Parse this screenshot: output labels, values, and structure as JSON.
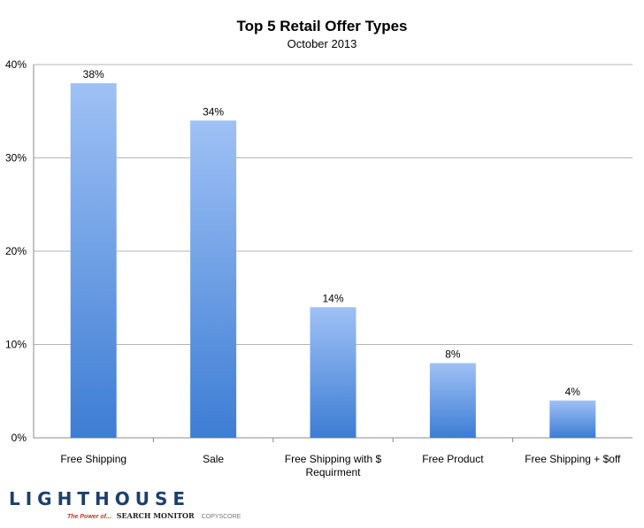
{
  "chart_data": {
    "type": "bar",
    "title": "Top 5 Retail Offer Types",
    "subtitle": "October 2013",
    "categories": [
      "Free Shipping",
      "Sale",
      "Free Shipping with $ Requirment",
      "Free Product",
      "Free Shipping + $off"
    ],
    "category_lines": [
      [
        "Free Shipping"
      ],
      [
        "Sale"
      ],
      [
        "Free Shipping with $",
        "Requirment"
      ],
      [
        "Free Product"
      ],
      [
        "Free Shipping + $off"
      ]
    ],
    "values": [
      38,
      34,
      14,
      8,
      4
    ],
    "data_labels": [
      "38%",
      "34%",
      "14%",
      "8%",
      "4%"
    ],
    "ylim": [
      0,
      40
    ],
    "yticks": [
      0,
      10,
      20,
      30,
      40
    ],
    "ytick_labels": [
      "0%",
      "10%",
      "20%",
      "30%",
      "40%"
    ],
    "xlabel": "",
    "ylabel": "",
    "grid": true,
    "colors": {
      "bar_top": "#9fc1f5",
      "bar_bottom": "#3d7dd4",
      "grid": "#b5b5b5",
      "axis": "#888888"
    }
  },
  "logo": {
    "wordmark": "LIGHTHOUSE",
    "tagline_1": "The Power of...",
    "tagline_2": "SEARCH MONITOR",
    "tagline_3": "COPYSCORE"
  }
}
